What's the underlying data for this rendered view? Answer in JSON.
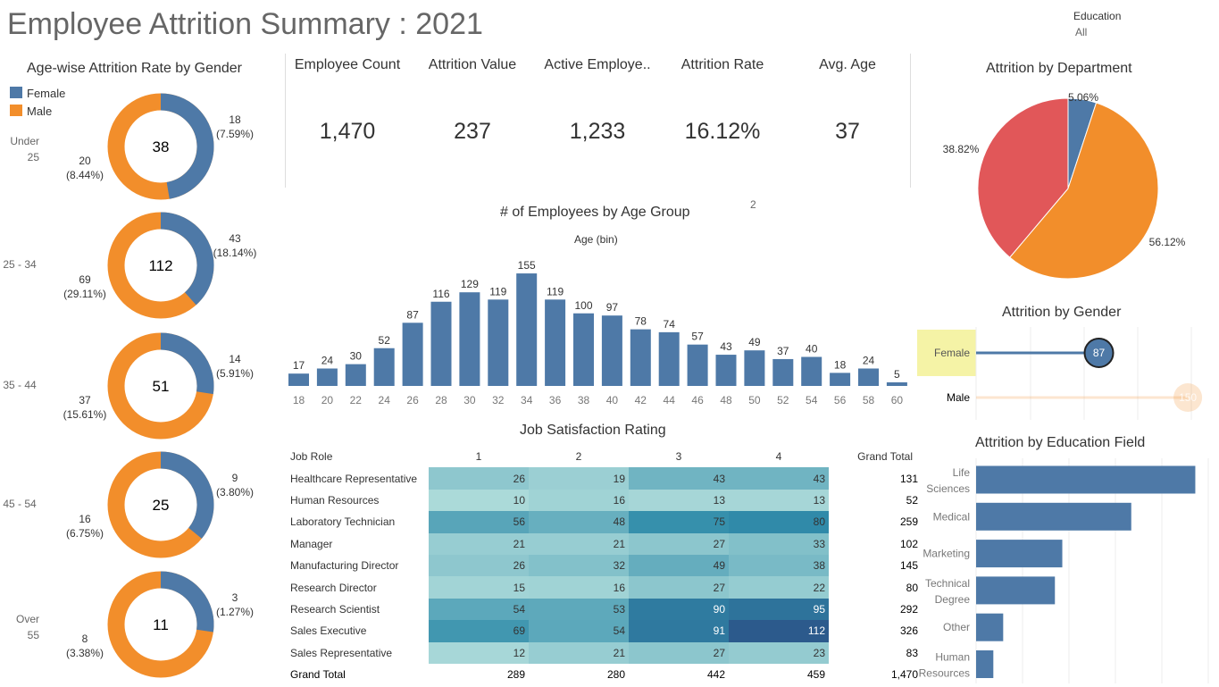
{
  "title": "Employee Attrition Summary : 2021",
  "filter": {
    "label": "Education",
    "value": "All"
  },
  "kpis": [
    {
      "label": "Employee Count",
      "value": "1,470"
    },
    {
      "label": "Attrition Value",
      "value": "237"
    },
    {
      "label": "Active Employe..",
      "value": "1,233"
    },
    {
      "label": "Attrition Rate",
      "value": "16.12%"
    },
    {
      "label": "Avg. Age",
      "value": "37"
    }
  ],
  "colors": {
    "female": "#4e79a7",
    "male": "#f28e2b",
    "rd": "#e15759",
    "highlight": "#f5f3a6"
  },
  "donuts": {
    "title": "Age-wise Attrition Rate by Gender",
    "legend": [
      "Female",
      "Male"
    ],
    "groups": [
      {
        "label": "Under 25",
        "total": "38",
        "female": 18,
        "female_pct": "(7.59%)",
        "male": 20,
        "male_pct": "(8.44%)"
      },
      {
        "label": "25 - 34",
        "total": "112",
        "female": 43,
        "female_pct": "(18.14%)",
        "male": 69,
        "male_pct": "(29.11%)"
      },
      {
        "label": "35 - 44",
        "total": "51",
        "female": 14,
        "female_pct": "(5.91%)",
        "male": 37,
        "male_pct": "(15.61%)"
      },
      {
        "label": "45 - 54",
        "total": "25",
        "female": 9,
        "female_pct": "(3.80%)",
        "male": 16,
        "male_pct": "(6.75%)"
      },
      {
        "label": "Over 55",
        "total": "11",
        "female": 3,
        "female_pct": "(1.27%)",
        "male": 8,
        "male_pct": "(3.38%)"
      }
    ]
  },
  "chart_data": [
    {
      "type": "bar",
      "title": "# of Employees by Age Group",
      "subtitle": "Age (bin)",
      "note": "2",
      "categories": [
        "18",
        "20",
        "22",
        "24",
        "26",
        "28",
        "30",
        "32",
        "34",
        "36",
        "38",
        "40",
        "42",
        "44",
        "46",
        "48",
        "50",
        "52",
        "54",
        "56",
        "58",
        "60"
      ],
      "values": [
        17,
        24,
        30,
        52,
        87,
        116,
        129,
        119,
        155,
        119,
        100,
        97,
        78,
        74,
        57,
        43,
        49,
        37,
        40,
        18,
        24,
        5
      ],
      "ylim": [
        0,
        160
      ]
    },
    {
      "type": "pie",
      "title": "Attrition by Department",
      "slices": [
        {
          "value": 5.06,
          "label": "5.06%",
          "color": "#4e79a7"
        },
        {
          "value": 56.12,
          "label": "56.12%",
          "color": "#f28e2b"
        },
        {
          "value": 38.82,
          "label": "38.82%",
          "color": "#e15759"
        }
      ]
    },
    {
      "type": "bar",
      "title": "Attrition by Gender",
      "categories": [
        "Female",
        "Male"
      ],
      "values": [
        87,
        150
      ],
      "xlim": [
        0,
        155
      ]
    },
    {
      "type": "bar",
      "title": "Attrition by Education Field",
      "categories": [
        "Life Sciences",
        "Medical",
        "Marketing",
        "Technical Degree",
        "Other",
        "Human Resources"
      ],
      "values": [
        89,
        63,
        35,
        32,
        11,
        7
      ],
      "xlim": [
        0,
        95
      ]
    },
    {
      "type": "heatmap",
      "title": "Job Satisfaction Rating",
      "row_header": "Job Role",
      "columns": [
        "1",
        "2",
        "3",
        "4"
      ],
      "total_label": "Grand Total",
      "rows": [
        {
          "role": "Healthcare Representative",
          "values": [
            26,
            19,
            43,
            43
          ],
          "total": "131"
        },
        {
          "role": "Human Resources",
          "values": [
            10,
            16,
            13,
            13
          ],
          "total": "52"
        },
        {
          "role": "Laboratory Technician",
          "values": [
            56,
            48,
            75,
            80
          ],
          "total": "259"
        },
        {
          "role": "Manager",
          "values": [
            21,
            21,
            27,
            33
          ],
          "total": "102"
        },
        {
          "role": "Manufacturing Director",
          "values": [
            26,
            32,
            49,
            38
          ],
          "total": "145"
        },
        {
          "role": "Research Director",
          "values": [
            15,
            16,
            27,
            22
          ],
          "total": "80"
        },
        {
          "role": "Research Scientist",
          "values": [
            54,
            53,
            90,
            95
          ],
          "total": "292"
        },
        {
          "role": "Sales Executive",
          "values": [
            69,
            54,
            91,
            112
          ],
          "total": "326"
        },
        {
          "role": "Sales Representative",
          "values": [
            12,
            21,
            27,
            23
          ],
          "total": "83"
        }
      ],
      "grand_total": {
        "role": "Grand Total",
        "values": [
          "289",
          "280",
          "442",
          "459"
        ],
        "total": "1,470"
      }
    }
  ]
}
